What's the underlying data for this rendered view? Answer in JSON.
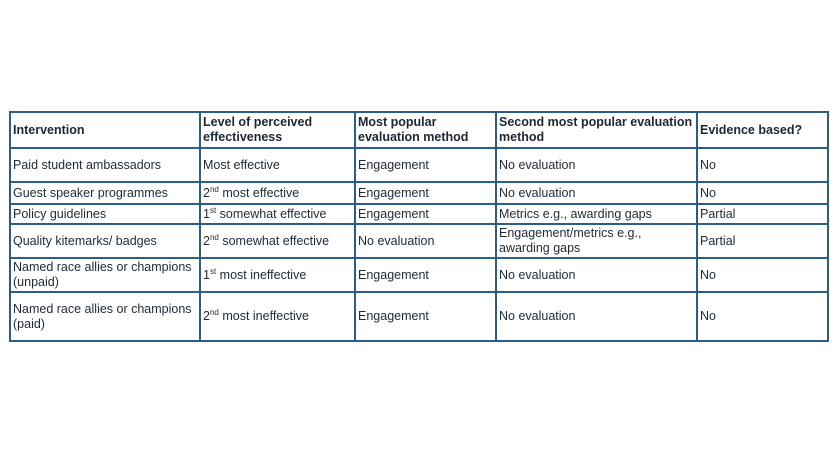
{
  "table": {
    "headers": [
      "Intervention",
      "Level of perceived effectiveness",
      "Most popular evaluation method",
      "Second most popular evaluation method",
      "Evidence based?"
    ],
    "rows": [
      {
        "intervention": "Paid student ambassadors",
        "level": {
          "ord": "",
          "sup": "",
          "text": "Most effective"
        },
        "most_popular": "Engagement",
        "second_popular": "No evaluation",
        "evidence": "No"
      },
      {
        "intervention": "Guest speaker programmes",
        "level": {
          "ord": "2",
          "sup": "nd",
          "text": " most effective"
        },
        "most_popular": "Engagement",
        "second_popular": "No evaluation",
        "evidence": "No"
      },
      {
        "intervention": "Policy guidelines",
        "level": {
          "ord": "1",
          "sup": "st",
          "text": " somewhat effective"
        },
        "most_popular": "Engagement",
        "second_popular": "Metrics e.g., awarding gaps",
        "evidence": "Partial"
      },
      {
        "intervention": "Quality kitemarks/ badges",
        "level": {
          "ord": "2",
          "sup": "nd",
          "text": " somewhat effective"
        },
        "most_popular": "No evaluation",
        "second_popular": "Engagement/metrics e.g., awarding gaps",
        "evidence": "Partial"
      },
      {
        "intervention": "Named race allies or champions (unpaid)",
        "level": {
          "ord": "1",
          "sup": "st",
          "text": " most ineffective"
        },
        "most_popular": "Engagement",
        "second_popular": "No evaluation",
        "evidence": "No"
      },
      {
        "intervention": "Named race allies or champions (paid)",
        "level": {
          "ord": "2",
          "sup": "nd",
          "text": " most ineffective"
        },
        "most_popular": "Engagement",
        "second_popular": "No evaluation",
        "evidence": "No"
      }
    ]
  }
}
